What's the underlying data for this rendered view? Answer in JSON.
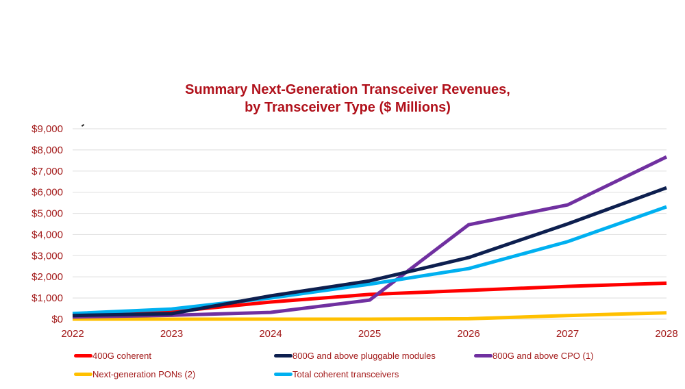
{
  "chart_data": {
    "type": "line",
    "title": "Summary Next-Generation Transceiver Revenues,",
    "subtitle": "by Transceiver Type ($ Millions)",
    "xlabel": "",
    "ylabel": "",
    "x": [
      "2022",
      "2023",
      "2024",
      "2025",
      "2026",
      "2027",
      "2028"
    ],
    "ylim": [
      0,
      9000
    ],
    "yticks": [
      0,
      1000,
      2000,
      3000,
      4000,
      5000,
      6000,
      7000,
      8000,
      9000
    ],
    "ytick_labels": [
      "$0",
      "$1,000",
      "$2,000",
      "$3,000",
      "$4,000",
      "$5,000",
      "$6,000",
      "$7,000",
      "$8,000",
      "$9,000"
    ],
    "grid": true,
    "legend_position": "bottom",
    "series": [
      {
        "name": "400G coherent",
        "color": "#ff0000",
        "values": [
          170,
          350,
          810,
          1170,
          1360,
          1550,
          1700
        ]
      },
      {
        "name": "800G and above pluggable modules",
        "color": "#0d1f4f",
        "values": [
          170,
          260,
          1100,
          1810,
          2910,
          4500,
          6210
        ]
      },
      {
        "name": "800G and above CPO (1)",
        "color": "#7030a0",
        "values": [
          100,
          180,
          320,
          900,
          4460,
          5400,
          7670
        ]
      },
      {
        "name": "Next-generation PONs (2)",
        "color": "#ffc000",
        "values": [
          0,
          0,
          0,
          0,
          20,
          170,
          300
        ]
      },
      {
        "name": "Total coherent transceivers",
        "color": "#00b0f0",
        "values": [
          270,
          480,
          1000,
          1650,
          2390,
          3660,
          5310
        ]
      }
    ]
  }
}
